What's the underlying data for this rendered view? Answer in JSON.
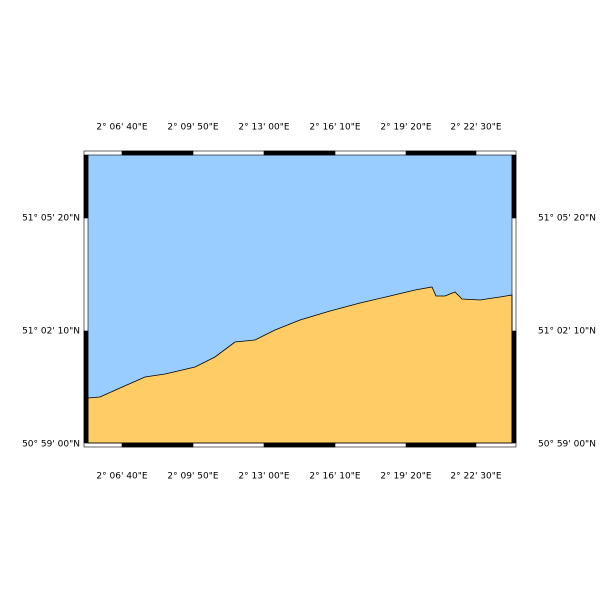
{
  "map": {
    "longitude_labels": [
      "2° 06' 40\"E",
      "2° 09' 50\"E",
      "2° 13' 00\"E",
      "2° 16' 10\"E",
      "2° 19' 20\"E",
      "2° 22' 30\"E"
    ],
    "latitude_labels": [
      "51° 05' 20\"N",
      "51° 02' 10\"N",
      "50° 59' 00\"N"
    ]
  }
}
